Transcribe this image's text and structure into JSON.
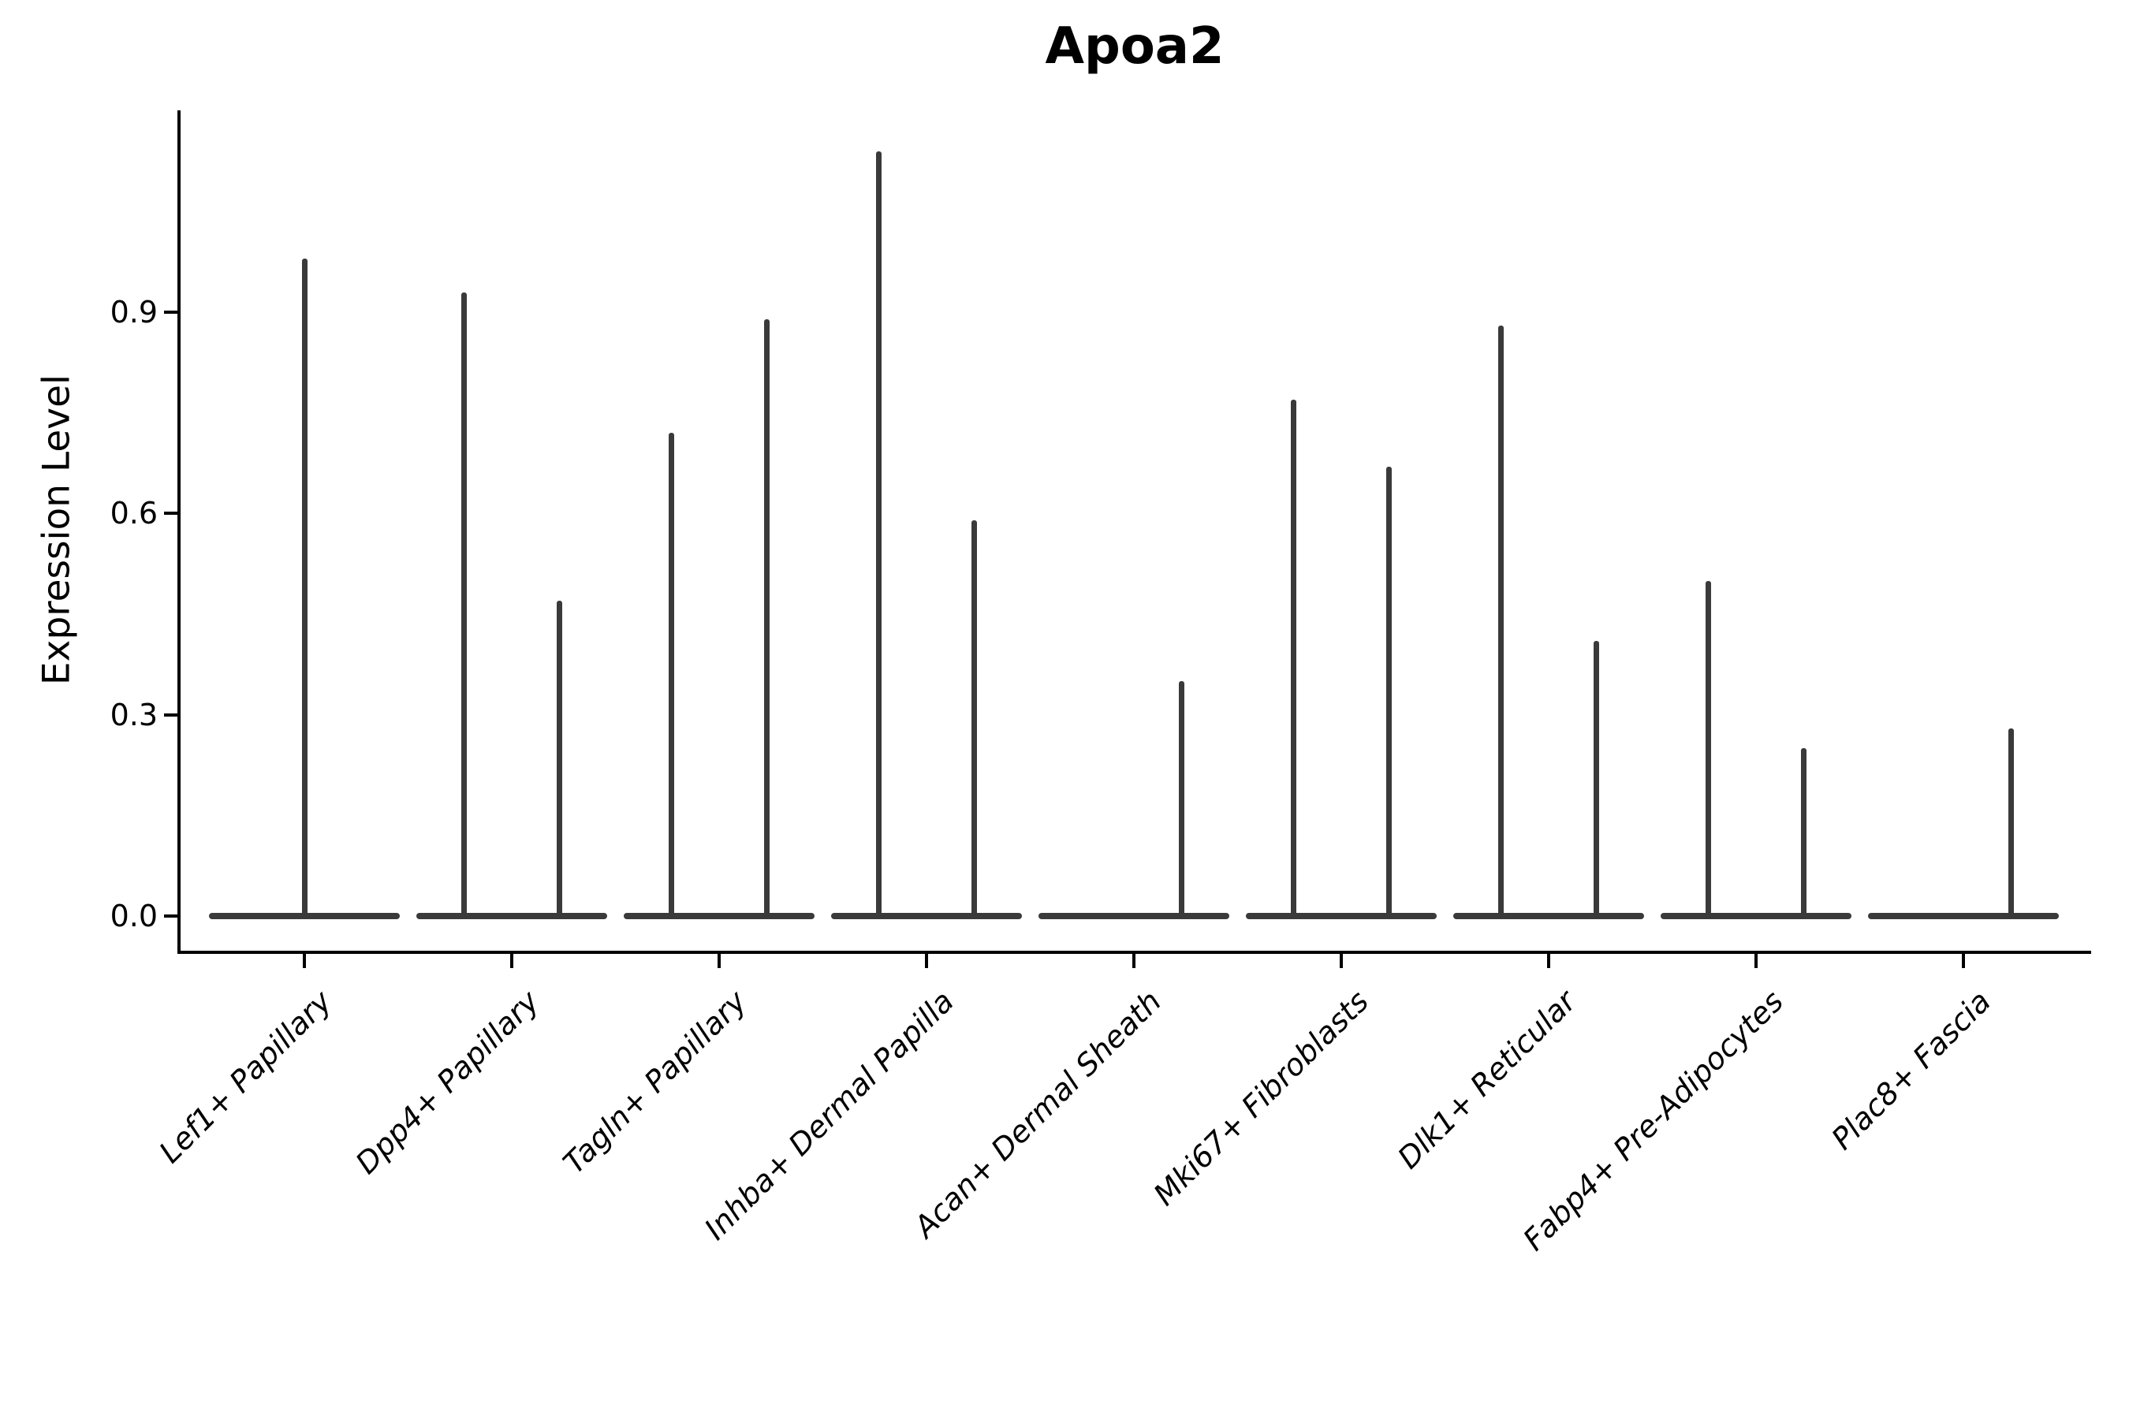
{
  "chart_data": {
    "type": "violin",
    "title": "Apoa2",
    "xlabel": "",
    "ylabel": "Expression Level",
    "grid": false,
    "legend_position": "none",
    "y_ticks": [
      "0.0",
      "0.3",
      "0.6",
      "0.9"
    ],
    "y_tick_values": [
      0.0,
      0.3,
      0.6,
      0.9
    ],
    "ylim": [
      -0.06,
      1.2
    ],
    "violin_color": "#3a3a3a",
    "axis_color": "#000000",
    "note": "expression concentrated at 0 for all groups; thin density spikes reach listed maxima",
    "categories": [
      "Lef1+ Papillary",
      "Dpp4+ Papillary",
      "Tagln+ Papillary",
      "Inhba+ Dermal Papilla",
      "Acan+ Dermal Sheath",
      "Mki67+ Fibroblasts",
      "Dlk1+ Reticular",
      "Fabp4+ Pre-Adipocytes",
      "Plac8+ Fascia"
    ],
    "violins": [
      {
        "category": "Lef1+ Papillary",
        "groups": [
          {
            "position": "full",
            "max": 0.98
          }
        ]
      },
      {
        "category": "Dpp4+ Papillary",
        "groups": [
          {
            "position": "left",
            "max": 0.93
          },
          {
            "position": "right",
            "max": 0.47
          }
        ]
      },
      {
        "category": "Tagln+ Papillary",
        "groups": [
          {
            "position": "left",
            "max": 0.72
          },
          {
            "position": "right",
            "max": 0.89
          }
        ]
      },
      {
        "category": "Inhba+ Dermal Papilla",
        "groups": [
          {
            "position": "left",
            "max": 1.14
          },
          {
            "position": "right",
            "max": 0.59
          }
        ]
      },
      {
        "category": "Acan+ Dermal Sheath",
        "groups": [
          {
            "position": "left",
            "max": 0.0
          },
          {
            "position": "right",
            "max": 0.35
          }
        ]
      },
      {
        "category": "Mki67+ Fibroblasts",
        "groups": [
          {
            "position": "left",
            "max": 0.77
          },
          {
            "position": "right",
            "max": 0.67
          }
        ]
      },
      {
        "category": "Dlk1+ Reticular",
        "groups": [
          {
            "position": "left",
            "max": 0.88
          },
          {
            "position": "right",
            "max": 0.41
          }
        ]
      },
      {
        "category": "Fabp4+ Pre-Adipocytes",
        "groups": [
          {
            "position": "left",
            "max": 0.5
          },
          {
            "position": "right",
            "max": 0.25
          }
        ]
      },
      {
        "category": "Plac8+ Fascia",
        "groups": [
          {
            "position": "left",
            "max": 0.0
          },
          {
            "position": "right",
            "max": 0.28
          }
        ]
      }
    ]
  }
}
